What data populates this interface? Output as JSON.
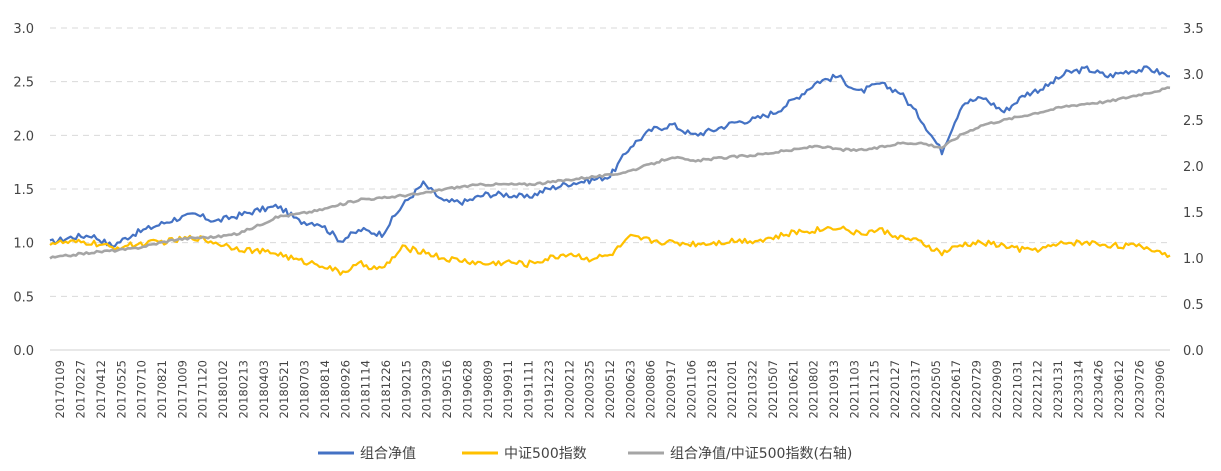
{
  "chart_data": {
    "type": "line",
    "title": "",
    "left_axis": {
      "ylim": [
        0,
        3.0
      ],
      "ticks": [
        "0.0",
        "0.5",
        "1.0",
        "1.5",
        "2.0",
        "2.5",
        "3.0"
      ]
    },
    "right_axis": {
      "ylim": [
        0,
        3.5
      ],
      "ticks": [
        "0.0",
        "0.5",
        "1.0",
        "1.5",
        "2.0",
        "2.5",
        "3.0",
        "3.5"
      ]
    },
    "grid": true,
    "legend_position": "bottom",
    "x_tick_labels": [
      "20170109",
      "20170227",
      "20170412",
      "20170525",
      "20170710",
      "20170821",
      "20171009",
      "20171120",
      "20180102",
      "20180213",
      "20180403",
      "20180521",
      "20180703",
      "20180814",
      "20180926",
      "20181114",
      "20181226",
      "20190215",
      "20190329",
      "20190516",
      "20190628",
      "20190809",
      "20190911",
      "20191111",
      "20191223",
      "20200212",
      "20200325",
      "20200512",
      "20200623",
      "20200806",
      "20200917",
      "20201106",
      "20201218",
      "20210201",
      "20210322",
      "20210507",
      "20210621",
      "20210802",
      "20210913",
      "20211103",
      "20211215",
      "20220127",
      "20220317",
      "20220505",
      "20220617",
      "20220729",
      "20220909",
      "20221031",
      "20221212",
      "20230131",
      "20230314",
      "20230426",
      "20230612",
      "20230726",
      "20230906"
    ],
    "series": [
      {
        "name": "组合净值",
        "color": "#4472c4",
        "axis": "left",
        "values": [
          1.0,
          1.05,
          1.07,
          0.97,
          1.08,
          1.15,
          1.22,
          1.26,
          1.2,
          1.25,
          1.3,
          1.34,
          1.2,
          1.18,
          1.02,
          1.12,
          1.08,
          1.35,
          1.55,
          1.38,
          1.38,
          1.45,
          1.45,
          1.42,
          1.5,
          1.55,
          1.58,
          1.62,
          1.9,
          2.05,
          2.1,
          2.0,
          2.05,
          2.12,
          2.15,
          2.22,
          2.35,
          2.5,
          2.55,
          2.4,
          2.48,
          2.4,
          2.15,
          1.85,
          2.3,
          2.35,
          2.22,
          2.38,
          2.45,
          2.58,
          2.62,
          2.55,
          2.6,
          2.62,
          2.55
        ]
      },
      {
        "name": "中证500指数",
        "color": "#ffc000",
        "axis": "left",
        "values": [
          1.0,
          1.0,
          1.0,
          0.95,
          0.98,
          1.0,
          1.02,
          1.05,
          1.0,
          0.95,
          0.92,
          0.9,
          0.83,
          0.8,
          0.72,
          0.8,
          0.75,
          0.95,
          0.92,
          0.85,
          0.83,
          0.8,
          0.82,
          0.8,
          0.85,
          0.9,
          0.85,
          0.88,
          1.05,
          1.02,
          1.0,
          0.99,
          1.0,
          1.02,
          1.02,
          1.05,
          1.1,
          1.12,
          1.15,
          1.08,
          1.12,
          1.05,
          1.0,
          0.9,
          0.98,
          1.0,
          0.97,
          0.93,
          0.95,
          1.0,
          1.0,
          0.98,
          0.97,
          0.95,
          0.88
        ]
      },
      {
        "name": "组合净值/中证500指数(右轴)",
        "color": "#a5a5a5",
        "axis": "right",
        "values": [
          1.0,
          1.03,
          1.06,
          1.08,
          1.1,
          1.15,
          1.2,
          1.22,
          1.23,
          1.26,
          1.35,
          1.45,
          1.48,
          1.52,
          1.58,
          1.64,
          1.65,
          1.68,
          1.7,
          1.75,
          1.78,
          1.8,
          1.8,
          1.8,
          1.82,
          1.85,
          1.88,
          1.9,
          1.95,
          2.02,
          2.1,
          2.05,
          2.08,
          2.1,
          2.12,
          2.15,
          2.18,
          2.22,
          2.18,
          2.17,
          2.2,
          2.25,
          2.25,
          2.2,
          2.35,
          2.45,
          2.5,
          2.55,
          2.6,
          2.65,
          2.68,
          2.7,
          2.75,
          2.8,
          2.85
        ]
      }
    ]
  }
}
